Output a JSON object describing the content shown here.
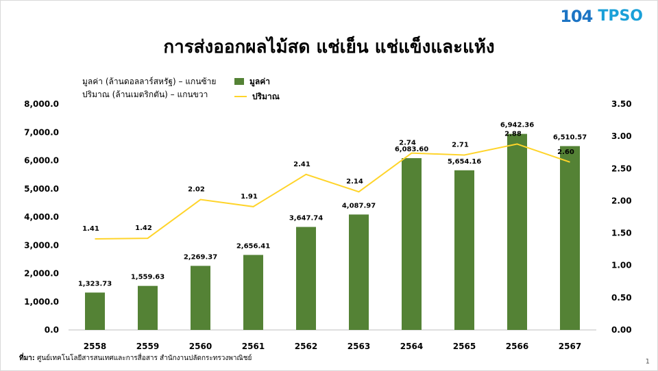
{
  "title": "การส่งออกผลไม้สด แช่เย็น แช่แข็งและแห้ง",
  "logo": {
    "mark_text": "104",
    "brand_text": "TPSO"
  },
  "notes": {
    "left_axis": "มูลค่า (ล้านดอลลาร์สหรัฐ) – แกนซ้าย",
    "right_axis": "ปริมาณ (ล้านเมตริกตัน)    – แกนขวา"
  },
  "source": {
    "label": "ที่มา:",
    "text": "ศูนย์เทคโนโลยีสารสนเทศและการสื่อสาร สำนักงานปลัดกระทรวงพาณิชย์"
  },
  "page_number": "1",
  "colors": {
    "bar": "#548235",
    "line": "#ffd42a",
    "axis": "#000000",
    "grid": "#d9d9d9"
  },
  "chart_data": {
    "type": "bar",
    "categories": [
      "2558",
      "2559",
      "2560",
      "2561",
      "2562",
      "2563",
      "2564",
      "2565",
      "2566",
      "2567"
    ],
    "series": [
      {
        "name": "มูลค่า",
        "type": "bar",
        "axis": "left",
        "values": [
          1323.73,
          1559.63,
          2269.37,
          2656.41,
          3647.74,
          4087.97,
          6083.6,
          5654.16,
          6942.36,
          6510.57
        ],
        "labels": [
          "1,323.73",
          "1,559.63",
          "2,269.37",
          "2,656.41",
          "3,647.74",
          "4,087.97",
          "6,083.60",
          "5,654.16",
          "6,942.36",
          "6,510.57"
        ]
      },
      {
        "name": "ปริมาณ",
        "type": "line",
        "axis": "right",
        "values": [
          1.41,
          1.42,
          2.02,
          1.91,
          2.41,
          2.14,
          2.74,
          2.71,
          2.88,
          2.6
        ],
        "labels": [
          "1.41",
          "1.42",
          "2.02",
          "1.91",
          "2.41",
          "2.14",
          "2.74",
          "2.71",
          "2.88",
          "2.60"
        ]
      }
    ],
    "y_left": {
      "lim": [
        0,
        8000
      ],
      "ticks": [
        0,
        1000,
        2000,
        3000,
        4000,
        5000,
        6000,
        7000,
        8000
      ],
      "tick_labels": [
        "0.0",
        "1,000.0",
        "2,000.0",
        "3,000.0",
        "4,000.0",
        "5,000.0",
        "6,000.0",
        "7,000.0",
        "8,000.0"
      ]
    },
    "y_right": {
      "lim": [
        0,
        3.5
      ],
      "ticks": [
        0,
        0.5,
        1,
        1.5,
        2,
        2.5,
        3,
        3.5
      ],
      "tick_labels": [
        "0.00",
        "0.50",
        "1.00",
        "1.50",
        "2.00",
        "2.50",
        "3.00",
        "3.50"
      ]
    },
    "grid": false,
    "legend_position": "top-left"
  }
}
